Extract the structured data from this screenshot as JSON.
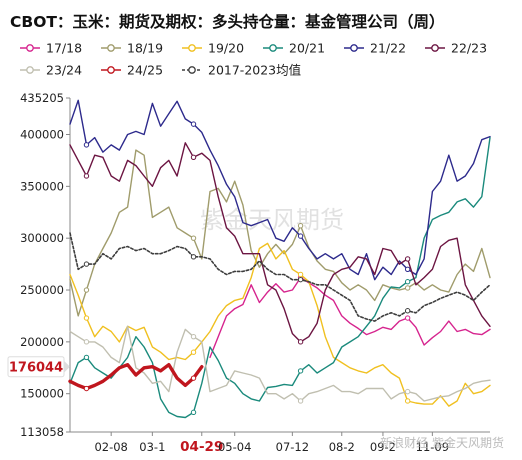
{
  "chart_data": {
    "type": "line",
    "title": "CBOT：玉米：期货及期权：多头持仓量：基金管理公司（周）",
    "xlabel": "",
    "ylabel": "",
    "ylim": [
      113058,
      435205
    ],
    "yticks": [
      113058,
      150000,
      200000,
      250000,
      300000,
      350000,
      400000,
      435205
    ],
    "x_index_range": [
      0,
      51
    ],
    "xticks": [
      {
        "label": "02-08",
        "index": 5
      },
      {
        "label": "03-1",
        "index": 10
      },
      {
        "label": "04-29",
        "index": 16,
        "highlight": true
      },
      {
        "label": "05-04",
        "index": 20
      },
      {
        "label": "07-12",
        "index": 27
      },
      {
        "label": "08-2",
        "index": 33
      },
      {
        "label": "09-2",
        "index": 38
      },
      {
        "label": "11-09",
        "index": 44
      }
    ],
    "marker": {
      "value": 176044,
      "label": "176044",
      "color": "#c0161e"
    },
    "watermark": "紫金天风期货",
    "footer_watermark": "新浪财经 紫金天风期货",
    "legend_placement": "top",
    "series": [
      {
        "name": "17/18",
        "color": "#d6248e",
        "dashed": false,
        "width": 1.4,
        "values": [
          null,
          null,
          null,
          null,
          null,
          null,
          null,
          null,
          null,
          null,
          null,
          null,
          null,
          null,
          null,
          null,
          null,
          185000,
          205000,
          225000,
          232000,
          236000,
          255000,
          238000,
          248000,
          256000,
          248000,
          250000,
          262000,
          257000,
          252000,
          245000,
          240000,
          225000,
          218000,
          213000,
          207000,
          210000,
          214000,
          212000,
          220000,
          223000,
          214000,
          197000,
          204000,
          210000,
          220000,
          210000,
          212000,
          208000,
          207000,
          212000
        ]
      },
      {
        "name": "18/19",
        "color": "#a09c6c",
        "dashed": false,
        "width": 1.4,
        "values": [
          260000,
          225000,
          250000,
          275000,
          290000,
          305000,
          325000,
          330000,
          385000,
          380000,
          320000,
          325000,
          330000,
          310000,
          305000,
          300000,
          280000,
          345000,
          348000,
          335000,
          355000,
          332000,
          288000,
          272000,
          285000,
          294000,
          285000,
          294000,
          312000,
          291000,
          278000,
          270000,
          268000,
          257000,
          250000,
          255000,
          250000,
          240000,
          255000,
          252000,
          250000,
          252000,
          257000,
          250000,
          255000,
          250000,
          248000,
          265000,
          275000,
          268000,
          290000,
          262000
        ]
      },
      {
        "name": "19/20",
        "color": "#f0c020",
        "dashed": false,
        "width": 1.4,
        "values": [
          265000,
          245000,
          223000,
          205000,
          215000,
          210000,
          200000,
          215000,
          211000,
          214000,
          195000,
          190000,
          183000,
          185000,
          183000,
          190000,
          200000,
          210000,
          225000,
          235000,
          240000,
          242000,
          262000,
          290000,
          295000,
          280000,
          288000,
          270000,
          265000,
          258000,
          235000,
          205000,
          185000,
          180000,
          175000,
          172000,
          170000,
          175000,
          178000,
          170000,
          165000,
          143000,
          141000,
          140000,
          140000,
          148000,
          138000,
          143000,
          160000,
          150000,
          152000,
          158000
        ]
      },
      {
        "name": "20/21",
        "color": "#1a8a7c",
        "dashed": false,
        "width": 1.4,
        "values": [
          160000,
          180000,
          185000,
          175000,
          170000,
          165000,
          175000,
          185000,
          205000,
          195000,
          180000,
          145000,
          132000,
          128000,
          127000,
          132000,
          160000,
          195000,
          182000,
          165000,
          160000,
          150000,
          145000,
          143000,
          156000,
          157000,
          159000,
          158000,
          172000,
          178000,
          170000,
          175000,
          180000,
          195000,
          200000,
          205000,
          215000,
          225000,
          242000,
          253000,
          252000,
          258000,
          262000,
          300000,
          318000,
          322000,
          325000,
          335000,
          338000,
          330000,
          340000,
          397000
        ]
      },
      {
        "name": "21/22",
        "color": "#2d2a8c",
        "dashed": false,
        "width": 1.4,
        "values": [
          410000,
          433000,
          390000,
          397000,
          383000,
          390000,
          385000,
          400000,
          403000,
          400000,
          430000,
          408000,
          420000,
          432000,
          415000,
          410000,
          402000,
          385000,
          370000,
          352000,
          340000,
          315000,
          312000,
          315000,
          318000,
          300000,
          297000,
          310000,
          302000,
          290000,
          280000,
          285000,
          280000,
          285000,
          270000,
          265000,
          285000,
          260000,
          272000,
          265000,
          278000,
          270000,
          265000,
          280000,
          345000,
          355000,
          380000,
          355000,
          360000,
          372000,
          395000,
          398000
        ]
      },
      {
        "name": "22/23",
        "color": "#6c1542",
        "dashed": false,
        "width": 1.4,
        "values": [
          390000,
          375000,
          360000,
          380000,
          378000,
          360000,
          355000,
          375000,
          370000,
          360000,
          350000,
          368000,
          375000,
          360000,
          392000,
          378000,
          382000,
          375000,
          340000,
          310000,
          302000,
          285000,
          285000,
          285000,
          255000,
          250000,
          232000,
          208000,
          200000,
          205000,
          218000,
          250000,
          265000,
          270000,
          272000,
          282000,
          280000,
          265000,
          290000,
          288000,
          275000,
          280000,
          255000,
          262000,
          270000,
          292000,
          298000,
          300000,
          255000,
          240000,
          225000,
          215000
        ]
      },
      {
        "name": "23/24",
        "color": "#c0bfb0",
        "dashed": false,
        "width": 1.4,
        "values": [
          210000,
          205000,
          200000,
          200000,
          195000,
          185000,
          180000,
          215000,
          175000,
          170000,
          160000,
          162000,
          152000,
          190000,
          212000,
          205000,
          200000,
          152000,
          155000,
          158000,
          172000,
          170000,
          168000,
          165000,
          150000,
          150000,
          145000,
          150000,
          143000,
          150000,
          152000,
          155000,
          158000,
          152000,
          152000,
          150000,
          155000,
          155000,
          155000,
          145000,
          150000,
          152000,
          150000,
          143000,
          145000,
          147000,
          148000,
          152000,
          155000,
          160000,
          162000,
          163000
        ]
      },
      {
        "name": "24/25",
        "color": "#c0161e",
        "dashed": false,
        "width": 3.4,
        "values": [
          162000,
          158000,
          155000,
          158000,
          162000,
          168000,
          175000,
          178000,
          168000,
          175000,
          176000,
          172000,
          178000,
          165000,
          158000,
          165000,
          176044
        ]
      },
      {
        "name": "2017-2023均值",
        "color": "#3d3d3d",
        "dashed": true,
        "width": 1.6,
        "values": [
          305000,
          270000,
          275000,
          275000,
          285000,
          280000,
          290000,
          292000,
          288000,
          290000,
          285000,
          285000,
          288000,
          292000,
          290000,
          282000,
          282000,
          280000,
          270000,
          265000,
          268000,
          268000,
          270000,
          278000,
          270000,
          265000,
          265000,
          260000,
          260000,
          258000,
          255000,
          255000,
          250000,
          245000,
          240000,
          225000,
          222000,
          220000,
          225000,
          228000,
          225000,
          230000,
          228000,
          235000,
          238000,
          242000,
          245000,
          248000,
          245000,
          240000,
          248000,
          255000
        ]
      }
    ]
  }
}
